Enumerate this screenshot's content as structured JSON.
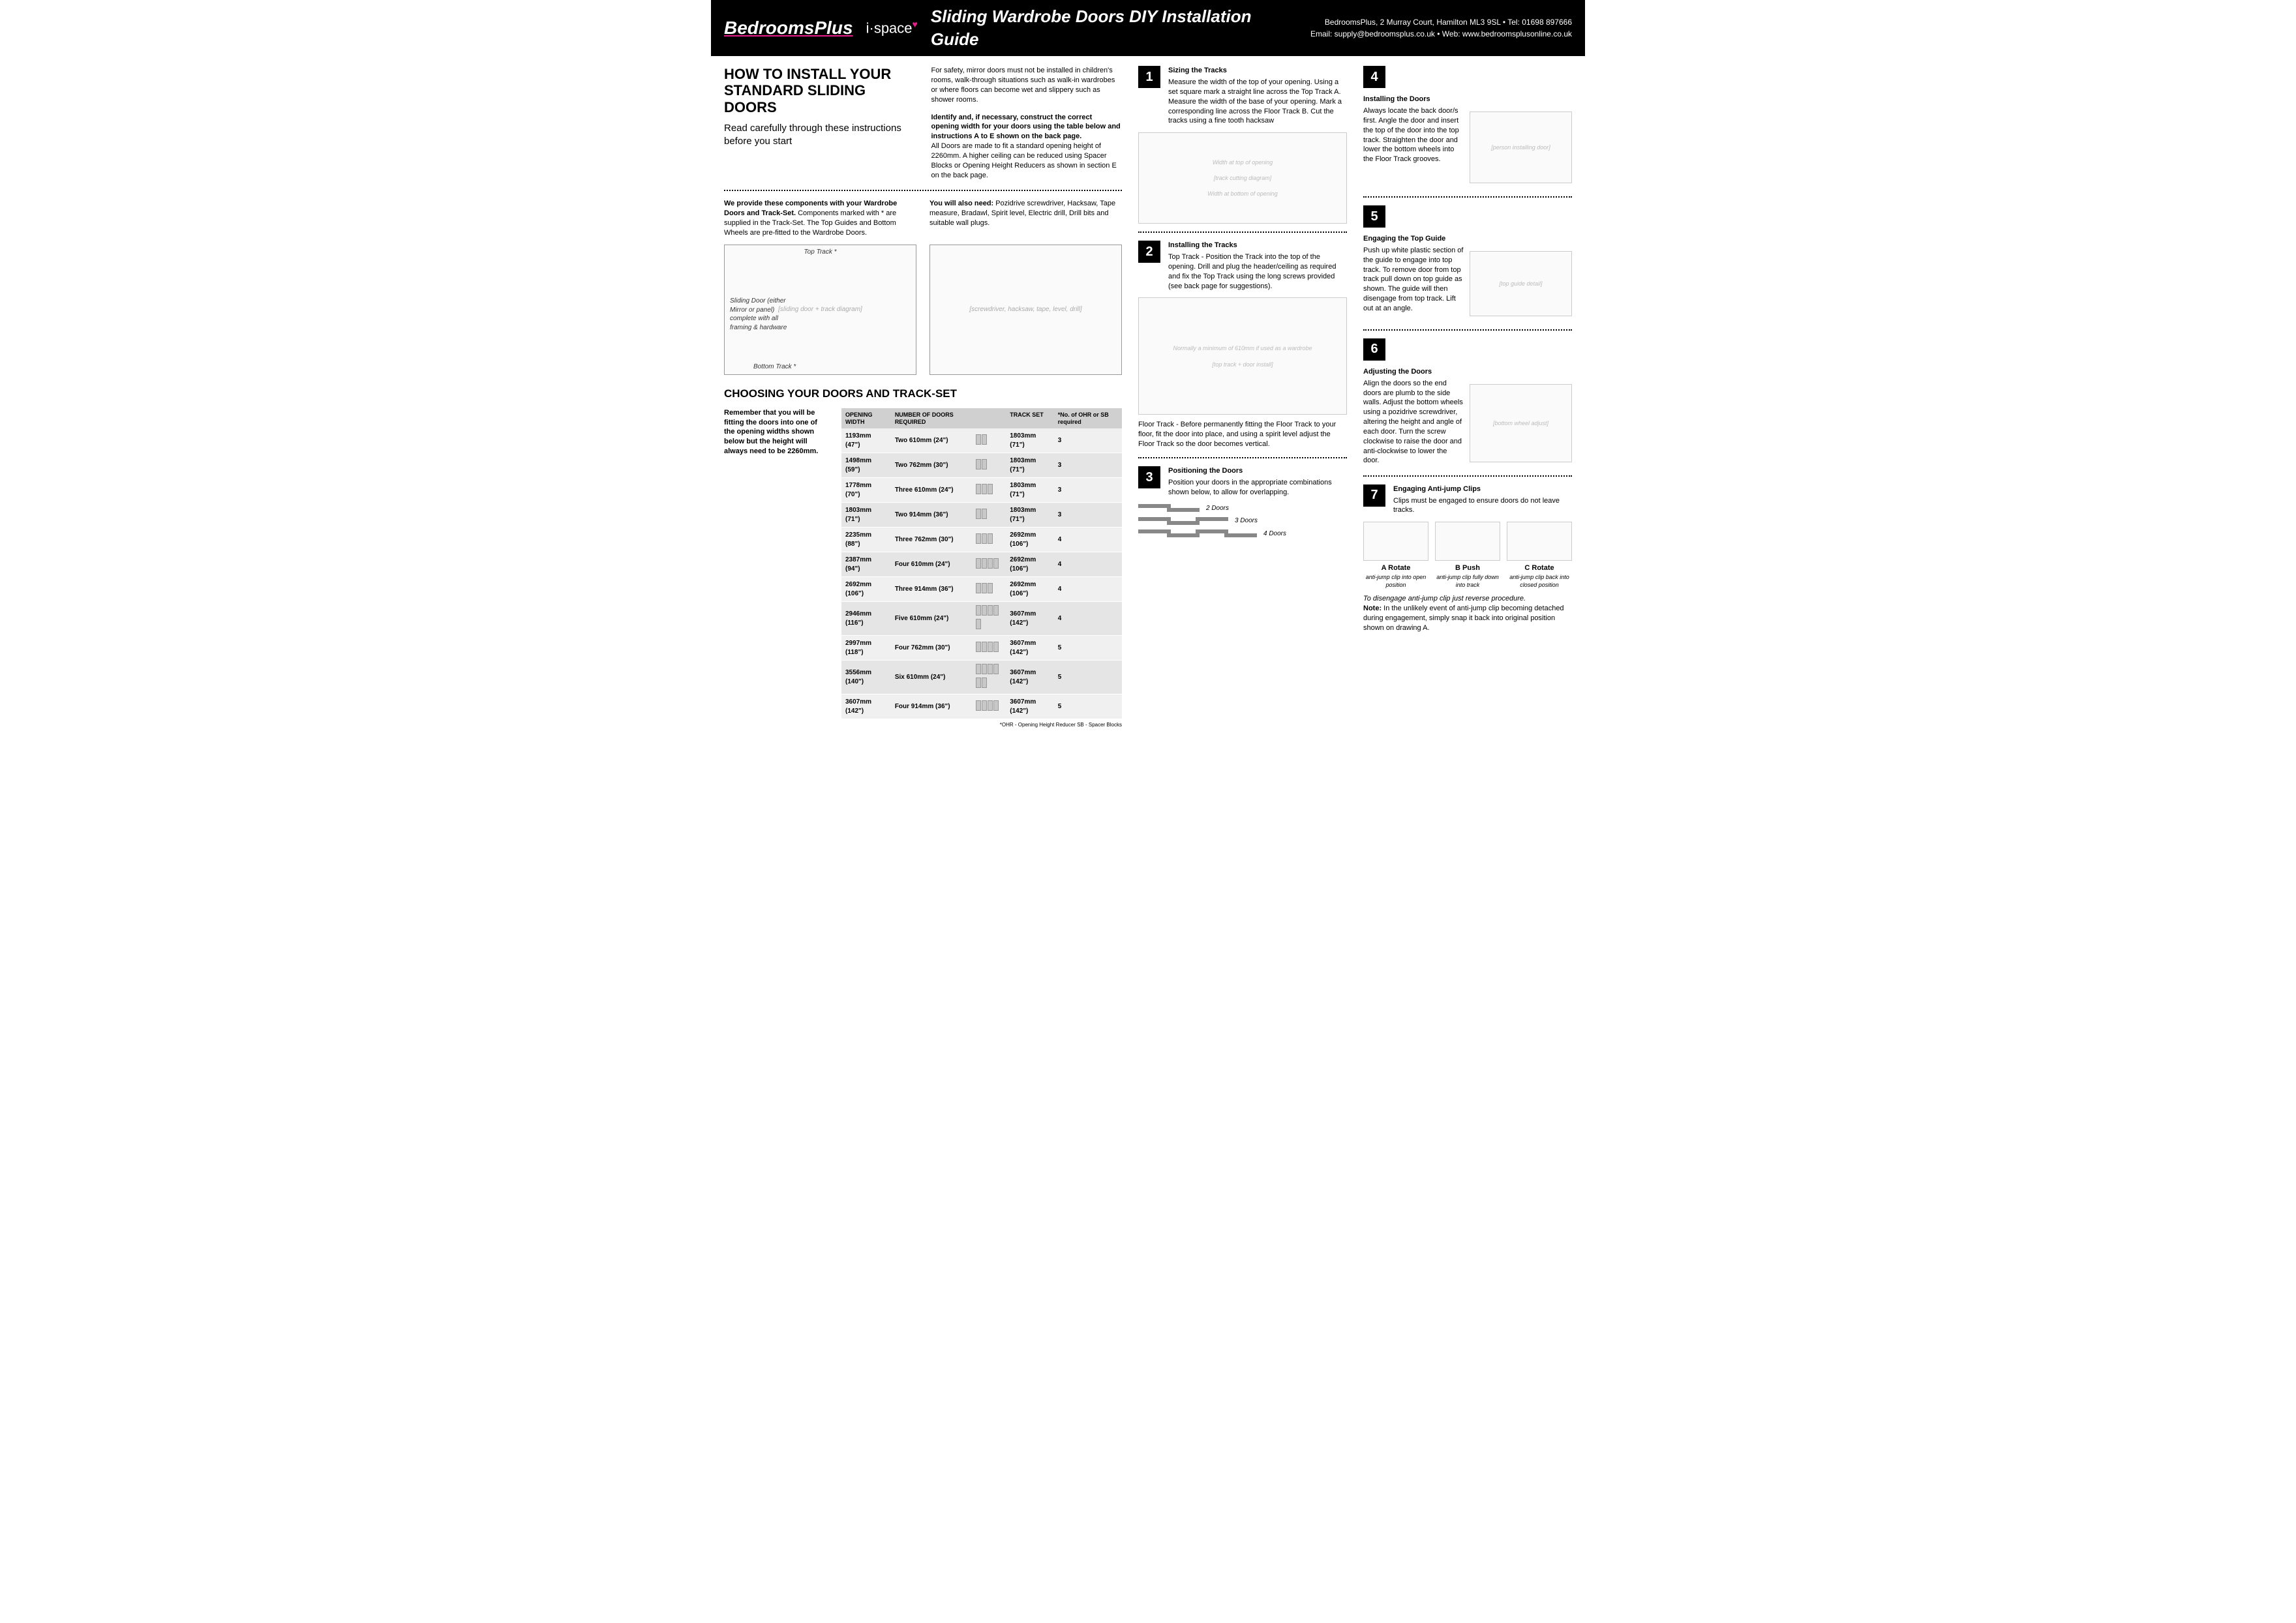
{
  "header": {
    "logo1a": "Bedrooms",
    "logo1b": "Plus",
    "logo2": "i·space",
    "title": "Sliding Wardrobe Doors DIY Installation Guide",
    "addr": "BedroomsPlus, 2 Murray Court, Hamilton ML3 9SL  •  Tel: 01698 897666",
    "contact": "Email: supply@bedroomsplus.co.uk  •  Web: www.bedroomsplusonline.co.uk"
  },
  "left": {
    "h1": "HOW TO INSTALL YOUR STANDARD SLIDING DOORS",
    "sub": "Read carefully through these instructions before you start",
    "safety": "For safety, mirror doors must not be installed in children's rooms, walk-through situations such as walk-in wardrobes or where floors can become wet and slippery such as shower rooms.",
    "open_b": "Identify and, if necessary, construct the correct opening width for your doors using the table below and instructions A to E shown on the back page.",
    "open_t": "All Doors are made to fit a standard opening height of 2260mm. A higher ceiling can be reduced using Spacer Blocks or Opening Height Reducers as shown in section E on the back page.",
    "comp_b": "We provide these components with your Wardrobe Doors and Track-Set.",
    "comp_t": " Components marked with * are supplied in the Track-Set. The Top Guides and Bottom Wheels are pre-fitted to the Wardrobe Doors.",
    "tools_b": "You will also need:",
    "tools_t": " Pozidrive screwdriver, Hacksaw, Tape measure, Bradawl, Spirit level, Electric drill, Drill bits and suitable wall plugs.",
    "dia_tt": "Top Track *",
    "dia_sd": "Sliding Door (either Mirror or panel) complete with all framing & hardware",
    "dia_bt": "Bottom Track *",
    "h2": "CHOOSING YOUR DOORS AND TRACK-SET",
    "tnote": "Remember that you will be fitting the doors into one of the opening widths shown below but the height will always need to be 2260mm.",
    "th": [
      "OPENING WIDTH",
      "NUMBER OF DOORS REQUIRED",
      "",
      "TRACK SET",
      "*No. of OHR or SB required"
    ],
    "rows": [
      [
        "1193mm (47\")",
        "Two 610mm (24\")",
        2,
        "1803mm (71\")",
        "3"
      ],
      [
        "1498mm (59\")",
        "Two 762mm (30\")",
        2,
        "1803mm (71\")",
        "3"
      ],
      [
        "1778mm (70\")",
        "Three 610mm (24\")",
        3,
        "1803mm (71\")",
        "3"
      ],
      [
        "1803mm (71\")",
        "Two 914mm (36\")",
        2,
        "1803mm (71\")",
        "3"
      ],
      [
        "2235mm (88\")",
        "Three 762mm (30\")",
        3,
        "2692mm (106\")",
        "4"
      ],
      [
        "2387mm (94\")",
        "Four 610mm (24\")",
        4,
        "2692mm (106\")",
        "4"
      ],
      [
        "2692mm (106\")",
        "Three 914mm (36\")",
        3,
        "2692mm (106\")",
        "4"
      ],
      [
        "2946mm (116\")",
        "Five 610mm (24\")",
        5,
        "3607mm (142\")",
        "4"
      ],
      [
        "2997mm (118\")",
        "Four 762mm (30\")",
        4,
        "3607mm (142\")",
        "5"
      ],
      [
        "3556mm (140\")",
        "Six 610mm (24\")",
        6,
        "3607mm (142\")",
        "5"
      ],
      [
        "3607mm (142\")",
        "Four 914mm (36\")",
        4,
        "3607mm (142\")",
        "5"
      ]
    ],
    "foot": "*OHR - Opening Height Reducer    SB - Spacer Blocks"
  },
  "steps": {
    "s1": {
      "t": "Sizing the Tracks",
      "b": "Measure the width of the top of your opening. Using a set square mark a straight line across the Top Track A. Measure the width of the base of your opening. Mark a corresponding line across the Floor Track B. Cut the tracks using a fine tooth hacksaw",
      "lbl1": "Width at top of opening",
      "lbl2": "Width at bottom of opening"
    },
    "s2": {
      "t": "Installing the Tracks",
      "b": "Top Track - Position the Track into the top of the opening. Drill and plug the header/ceiling as required and fix the Top Track using the long screws provided (see back page for suggestions).",
      "lbl": "Normally a minimum of 610mm if used as a wardrobe",
      "ft": "Floor Track - Before permanently fitting the Floor Track to your floor, fit the door into place, and using a spirit level adjust the Floor Track so the door becomes vertical."
    },
    "s3": {
      "t": "Positioning the Doors",
      "b": "Position your doors in the appropriate combinations shown below, to allow for overlapping.",
      "d2": "2 Doors",
      "d3": "3 Doors",
      "d4": "4 Doors"
    },
    "s4": {
      "t": "Installing the Doors",
      "b": "Always locate the back door/s first. Angle the door and insert the top of the door into the top track. Straighten the door and lower the bottom wheels into the Floor Track grooves."
    },
    "s5": {
      "t": "Engaging the Top Guide",
      "b": "Push up white plastic section of the guide to engage into top track. To remove door from top track pull down on top guide as shown. The guide will then disengage from top track. Lift out at an angle."
    },
    "s6": {
      "t": "Adjusting the Doors",
      "b": "Align the doors so the end doors are plumb to the side walls. Adjust the bottom wheels using a pozidrive screwdriver, altering the height and angle of each door. Turn the screw clockwise to raise the door and anti-clockwise to lower the door."
    },
    "s7": {
      "t": "Engaging Anti-jump Clips",
      "b": "Clips must be engaged to ensure doors do not leave tracks.",
      "clips": [
        [
          "A Rotate",
          "anti-jump clip into open position"
        ],
        [
          "B Push",
          "anti-jump clip fully down into track"
        ],
        [
          "C Rotate",
          "anti-jump clip back into closed position"
        ]
      ],
      "dis": "To disengage anti-jump clip just reverse procedure.",
      "note_b": "Note:",
      "note": " In the unlikely event of anti-jump clip becoming detached during engagement, simply snap it back into original position shown on drawing A."
    }
  }
}
